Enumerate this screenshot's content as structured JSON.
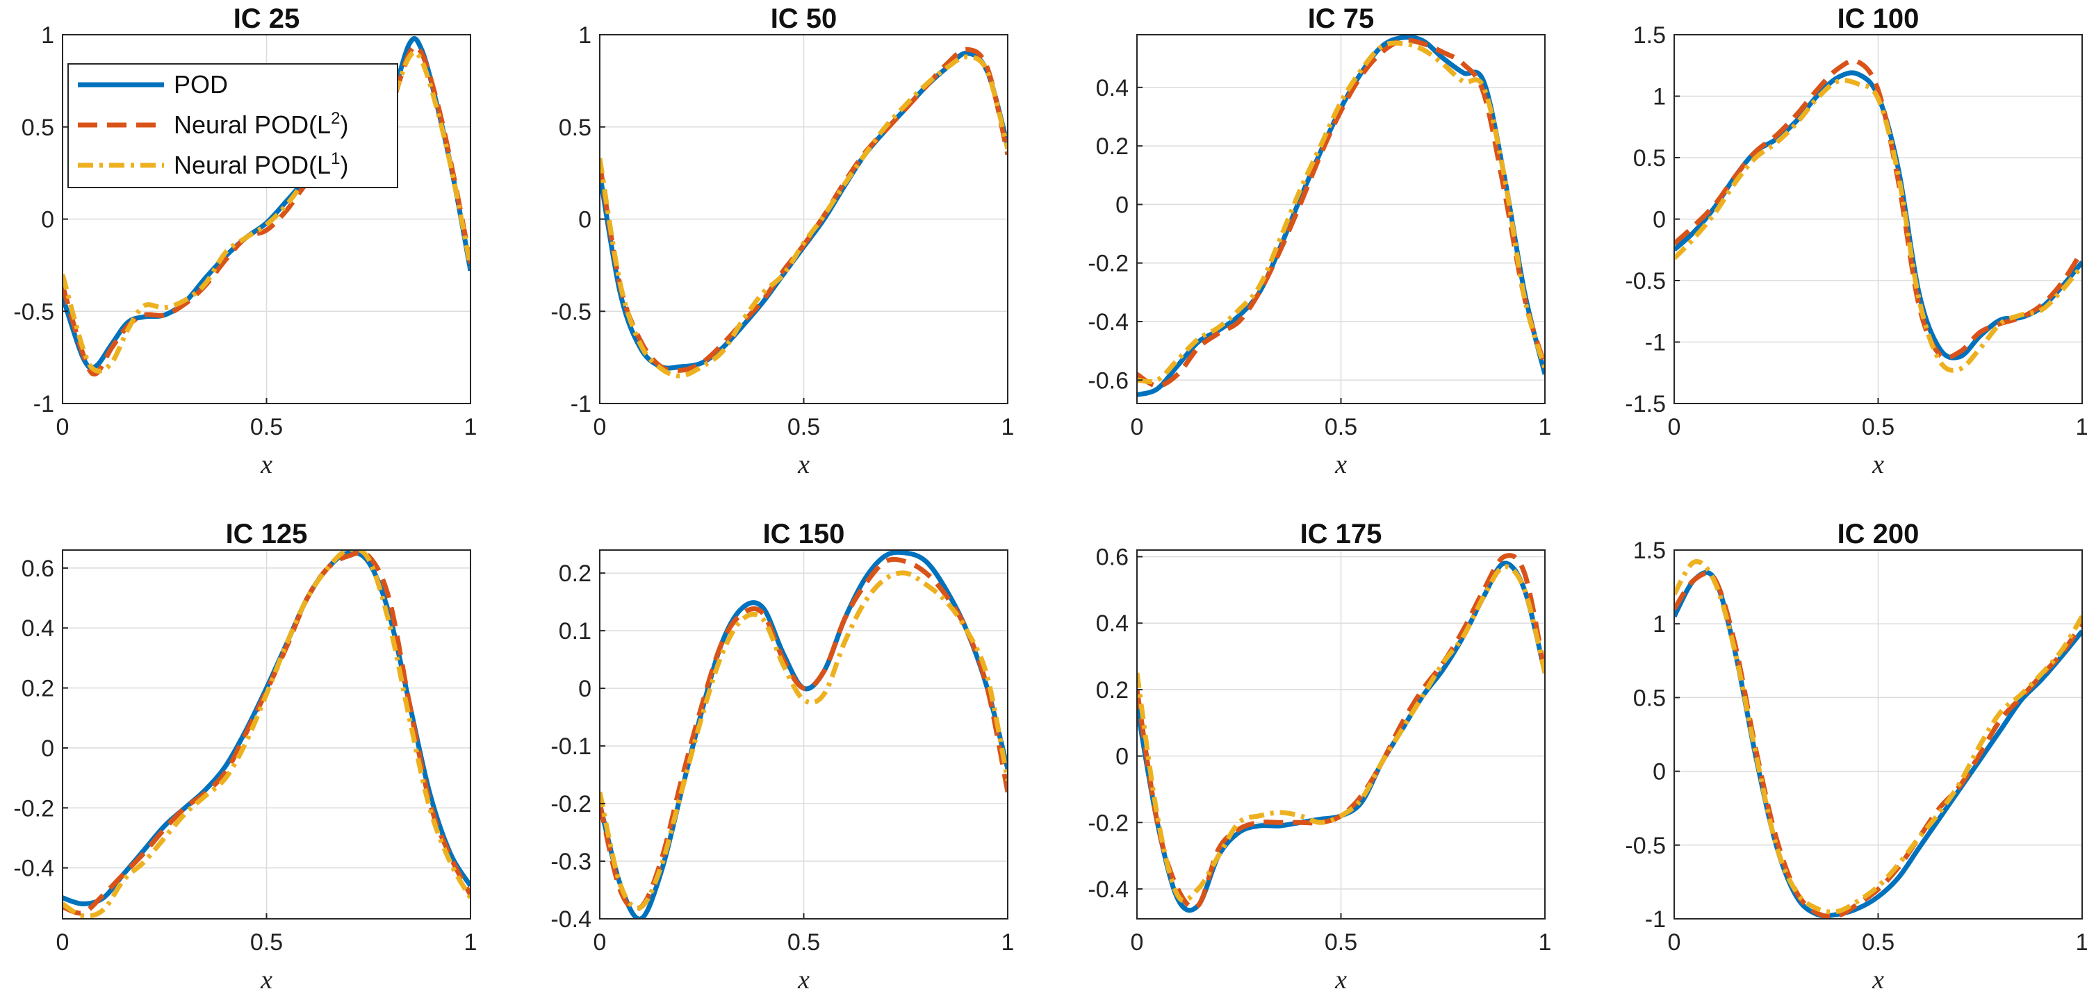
{
  "figure": {
    "legend": {
      "location": "top-left of first panel",
      "entries": [
        {
          "series": "POD",
          "label": "POD",
          "sup": ""
        },
        {
          "series": "L2",
          "label": "Neural  POD(L",
          "sup": "2",
          "close": ")"
        },
        {
          "series": "L1",
          "label": "Neural  POD(L",
          "sup": "1",
          "close": ")"
        }
      ]
    }
  },
  "styles": {
    "POD": {
      "color": "#0072BD",
      "dash": "none"
    },
    "L2": {
      "color": "#D95319",
      "dash": "28,14"
    },
    "L1": {
      "color": "#EDB120",
      "dash": "22,9,5,9"
    }
  },
  "chart_data": [
    {
      "type": "line",
      "title": "IC 25",
      "xlabel": "x",
      "ylabel": "",
      "xlim": [
        0,
        1
      ],
      "ylim": [
        -1,
        1
      ],
      "grid": true,
      "xticks": [
        0,
        0.5,
        1
      ],
      "xticklabels": [
        "0",
        "0.5",
        "1"
      ],
      "yticks": [
        -1,
        -0.5,
        0,
        0.5,
        1
      ],
      "yticklabels": [
        "-1",
        "-0.5",
        "0",
        "0.5",
        "1"
      ],
      "x": [
        0,
        0.05,
        0.08,
        0.12,
        0.16,
        0.2,
        0.25,
        0.3,
        0.35,
        0.4,
        0.45,
        0.5,
        0.55,
        0.6,
        0.65,
        0.7,
        0.75,
        0.8,
        0.85,
        0.88,
        0.92,
        0.96,
        1.0
      ],
      "series": [
        {
          "name": "POD",
          "values": [
            -0.42,
            -0.75,
            -0.8,
            -0.68,
            -0.56,
            -0.53,
            -0.52,
            -0.45,
            -0.32,
            -0.2,
            -0.1,
            -0.02,
            0.1,
            0.22,
            0.3,
            0.33,
            0.4,
            0.6,
            0.95,
            0.92,
            0.6,
            0.2,
            -0.28
          ]
        },
        {
          "name": "Neural POD(L2)",
          "values": [
            -0.36,
            -0.73,
            -0.84,
            -0.7,
            -0.58,
            -0.52,
            -0.52,
            -0.46,
            -0.36,
            -0.22,
            -0.1,
            -0.06,
            0.05,
            0.2,
            0.3,
            0.34,
            0.4,
            0.58,
            0.9,
            0.9,
            0.62,
            0.22,
            -0.24
          ]
        },
        {
          "name": "Neural POD(L1)",
          "values": [
            -0.3,
            -0.7,
            -0.82,
            -0.78,
            -0.6,
            -0.47,
            -0.48,
            -0.44,
            -0.35,
            -0.18,
            -0.1,
            -0.03,
            0.08,
            0.22,
            0.3,
            0.35,
            0.42,
            0.6,
            0.88,
            0.86,
            0.58,
            0.2,
            -0.26
          ]
        }
      ]
    },
    {
      "type": "line",
      "title": "IC 50",
      "xlabel": "x",
      "ylabel": "",
      "xlim": [
        0,
        1
      ],
      "ylim": [
        -1,
        1
      ],
      "grid": true,
      "xticks": [
        0,
        0.5,
        1
      ],
      "xticklabels": [
        "0",
        "0.5",
        "1"
      ],
      "yticks": [
        -1,
        -0.5,
        0,
        0.5,
        1
      ],
      "yticklabels": [
        "-1",
        "-0.5",
        "0",
        "0.5",
        "1"
      ],
      "x": [
        0,
        0.05,
        0.1,
        0.15,
        0.2,
        0.25,
        0.3,
        0.35,
        0.4,
        0.45,
        0.5,
        0.55,
        0.6,
        0.65,
        0.7,
        0.75,
        0.8,
        0.85,
        0.9,
        0.95,
        1.0
      ],
      "series": [
        {
          "name": "POD",
          "values": [
            0.25,
            -0.4,
            -0.7,
            -0.8,
            -0.8,
            -0.78,
            -0.7,
            -0.58,
            -0.45,
            -0.3,
            -0.15,
            0.0,
            0.18,
            0.35,
            0.48,
            0.6,
            0.72,
            0.82,
            0.9,
            0.8,
            0.4
          ]
        },
        {
          "name": "Neural POD(L2)",
          "values": [
            0.3,
            -0.36,
            -0.66,
            -0.8,
            -0.82,
            -0.78,
            -0.68,
            -0.56,
            -0.44,
            -0.28,
            -0.14,
            0.02,
            0.2,
            0.36,
            0.48,
            0.6,
            0.72,
            0.84,
            0.92,
            0.82,
            0.35
          ]
        },
        {
          "name": "Neural POD(L1)",
          "values": [
            0.33,
            -0.35,
            -0.68,
            -0.81,
            -0.85,
            -0.8,
            -0.72,
            -0.55,
            -0.4,
            -0.3,
            -0.13,
            0.02,
            0.19,
            0.35,
            0.5,
            0.62,
            0.73,
            0.82,
            0.88,
            0.8,
            0.38
          ]
        }
      ]
    },
    {
      "type": "line",
      "title": "IC 75",
      "xlabel": "x",
      "ylabel": "",
      "xlim": [
        0,
        1
      ],
      "ylim": [
        -0.68,
        0.58
      ],
      "grid": true,
      "xticks": [
        0,
        0.5,
        1
      ],
      "xticklabels": [
        "0",
        "0.5",
        "1"
      ],
      "yticks": [
        -0.6,
        -0.4,
        -0.2,
        0,
        0.2,
        0.4
      ],
      "yticklabels": [
        "-0.6",
        "-0.4",
        "-0.2",
        "0",
        "0.2",
        "0.4"
      ],
      "x": [
        0,
        0.05,
        0.1,
        0.15,
        0.2,
        0.25,
        0.3,
        0.35,
        0.4,
        0.45,
        0.5,
        0.55,
        0.6,
        0.65,
        0.7,
        0.75,
        0.8,
        0.85,
        0.9,
        0.95,
        1.0
      ],
      "series": [
        {
          "name": "POD",
          "values": [
            -0.65,
            -0.63,
            -0.55,
            -0.47,
            -0.43,
            -0.38,
            -0.3,
            -0.15,
            0.02,
            0.18,
            0.33,
            0.45,
            0.54,
            0.57,
            0.56,
            0.5,
            0.45,
            0.42,
            0.1,
            -0.3,
            -0.58
          ]
        },
        {
          "name": "Neural POD(L2)",
          "values": [
            -0.58,
            -0.62,
            -0.58,
            -0.49,
            -0.44,
            -0.4,
            -0.3,
            -0.16,
            0.0,
            0.17,
            0.32,
            0.44,
            0.52,
            0.56,
            0.55,
            0.52,
            0.48,
            0.38,
            0.05,
            -0.32,
            -0.55
          ]
        },
        {
          "name": "Neural POD(L1)",
          "values": [
            -0.6,
            -0.6,
            -0.53,
            -0.46,
            -0.42,
            -0.36,
            -0.28,
            -0.12,
            0.05,
            0.2,
            0.35,
            0.46,
            0.54,
            0.55,
            0.53,
            0.48,
            0.42,
            0.4,
            0.1,
            -0.32,
            -0.56
          ]
        }
      ]
    },
    {
      "type": "line",
      "title": "IC 100",
      "xlabel": "x",
      "ylabel": "",
      "xlim": [
        0,
        1
      ],
      "ylim": [
        -1.5,
        1.5
      ],
      "grid": true,
      "xticks": [
        0,
        0.5,
        1
      ],
      "xticklabels": [
        "0",
        "0.5",
        "1"
      ],
      "yticks": [
        -1.5,
        -1,
        -0.5,
        0,
        0.5,
        1,
        1.5
      ],
      "yticklabels": [
        "-1.5",
        "-1",
        "-0.5",
        "0",
        "0.5",
        "1",
        "1.5"
      ],
      "x": [
        0,
        0.05,
        0.1,
        0.15,
        0.2,
        0.25,
        0.3,
        0.35,
        0.4,
        0.45,
        0.5,
        0.55,
        0.6,
        0.65,
        0.7,
        0.75,
        0.8,
        0.85,
        0.9,
        0.95,
        1.0
      ],
      "series": [
        {
          "name": "POD",
          "values": [
            -0.25,
            -0.1,
            0.1,
            0.35,
            0.55,
            0.65,
            0.8,
            1.0,
            1.15,
            1.18,
            1.0,
            0.4,
            -0.6,
            -1.05,
            -1.12,
            -0.95,
            -0.82,
            -0.8,
            -0.72,
            -0.55,
            -0.35
          ]
        },
        {
          "name": "Neural POD(L2)",
          "values": [
            -0.2,
            -0.05,
            0.12,
            0.35,
            0.55,
            0.68,
            0.85,
            1.05,
            1.22,
            1.28,
            1.05,
            0.3,
            -0.7,
            -1.1,
            -1.08,
            -0.92,
            -0.85,
            -0.8,
            -0.7,
            -0.52,
            -0.26
          ]
        },
        {
          "name": "Neural POD(L1)",
          "values": [
            -0.32,
            -0.15,
            0.05,
            0.3,
            0.5,
            0.62,
            0.78,
            0.98,
            1.12,
            1.1,
            0.98,
            0.35,
            -0.65,
            -1.15,
            -1.22,
            -1.05,
            -0.85,
            -0.78,
            -0.74,
            -0.58,
            -0.38
          ]
        }
      ]
    },
    {
      "type": "line",
      "title": "IC 125",
      "xlabel": "x",
      "ylabel": "",
      "xlim": [
        0,
        1
      ],
      "ylim": [
        -0.57,
        0.66
      ],
      "grid": true,
      "xticks": [
        0,
        0.5,
        1
      ],
      "xticklabels": [
        "0",
        "0.5",
        "1"
      ],
      "yticks": [
        -0.4,
        -0.2,
        0,
        0.2,
        0.4,
        0.6
      ],
      "yticklabels": [
        "-0.4",
        "-0.2",
        "0",
        "0.2",
        "0.4",
        "0.6"
      ],
      "x": [
        0,
        0.05,
        0.1,
        0.15,
        0.2,
        0.25,
        0.3,
        0.35,
        0.4,
        0.45,
        0.5,
        0.55,
        0.6,
        0.65,
        0.7,
        0.75,
        0.8,
        0.85,
        0.9,
        0.95,
        1.0
      ],
      "series": [
        {
          "name": "POD",
          "values": [
            -0.5,
            -0.52,
            -0.5,
            -0.42,
            -0.34,
            -0.26,
            -0.2,
            -0.14,
            -0.06,
            0.06,
            0.2,
            0.35,
            0.5,
            0.6,
            0.65,
            0.62,
            0.45,
            0.15,
            -0.15,
            -0.35,
            -0.46
          ]
        },
        {
          "name": "Neural POD(L2)",
          "values": [
            -0.53,
            -0.55,
            -0.49,
            -0.42,
            -0.35,
            -0.27,
            -0.2,
            -0.15,
            -0.08,
            0.05,
            0.19,
            0.34,
            0.5,
            0.6,
            0.64,
            0.64,
            0.5,
            0.15,
            -0.18,
            -0.36,
            -0.49
          ]
        },
        {
          "name": "Neural POD(L1)",
          "values": [
            -0.52,
            -0.56,
            -0.54,
            -0.44,
            -0.38,
            -0.3,
            -0.22,
            -0.16,
            -0.1,
            0.02,
            0.18,
            0.35,
            0.5,
            0.6,
            0.66,
            0.63,
            0.42,
            0.1,
            -0.2,
            -0.38,
            -0.5
          ]
        }
      ]
    },
    {
      "type": "line",
      "title": "IC 150",
      "xlabel": "x",
      "ylabel": "",
      "xlim": [
        0,
        1
      ],
      "ylim": [
        -0.4,
        0.24
      ],
      "grid": true,
      "xticks": [
        0,
        0.5,
        1
      ],
      "xticklabels": [
        "0",
        "0.5",
        "1"
      ],
      "yticks": [
        -0.4,
        -0.3,
        -0.2,
        -0.1,
        0,
        0.1,
        0.2
      ],
      "yticklabels": [
        "-0.4",
        "-0.3",
        "-0.2",
        "-0.1",
        "0",
        "0.1",
        "0.2"
      ],
      "x": [
        0,
        0.05,
        0.1,
        0.15,
        0.2,
        0.25,
        0.3,
        0.35,
        0.4,
        0.45,
        0.5,
        0.55,
        0.6,
        0.65,
        0.7,
        0.75,
        0.8,
        0.85,
        0.9,
        0.95,
        1.0
      ],
      "series": [
        {
          "name": "POD",
          "values": [
            -0.2,
            -0.34,
            -0.4,
            -0.32,
            -0.18,
            -0.04,
            0.08,
            0.14,
            0.14,
            0.06,
            0.0,
            0.03,
            0.12,
            0.19,
            0.23,
            0.235,
            0.22,
            0.17,
            0.1,
            0.0,
            -0.14
          ]
        },
        {
          "name": "Neural POD(L2)",
          "values": [
            -0.2,
            -0.35,
            -0.38,
            -0.3,
            -0.16,
            -0.03,
            0.08,
            0.13,
            0.13,
            0.05,
            0.0,
            0.03,
            0.12,
            0.18,
            0.22,
            0.22,
            0.2,
            0.16,
            0.1,
            0.0,
            -0.18
          ]
        },
        {
          "name": "Neural POD(L1)",
          "values": [
            -0.18,
            -0.34,
            -0.38,
            -0.31,
            -0.18,
            -0.05,
            0.06,
            0.12,
            0.12,
            0.04,
            -0.02,
            -0.01,
            0.08,
            0.15,
            0.19,
            0.2,
            0.18,
            0.15,
            0.1,
            0.02,
            -0.16
          ]
        }
      ]
    },
    {
      "type": "line",
      "title": "IC 175",
      "xlabel": "x",
      "ylabel": "",
      "xlim": [
        0,
        1
      ],
      "ylim": [
        -0.49,
        0.62
      ],
      "grid": true,
      "xticks": [
        0,
        0.5,
        1
      ],
      "xticklabels": [
        "0",
        "0.5",
        "1"
      ],
      "yticks": [
        -0.4,
        -0.2,
        0,
        0.2,
        0.4,
        0.6
      ],
      "yticklabels": [
        "-0.4",
        "-0.2",
        "0",
        "0.2",
        "0.4",
        "0.6"
      ],
      "x": [
        0,
        0.05,
        0.1,
        0.15,
        0.2,
        0.25,
        0.3,
        0.35,
        0.4,
        0.45,
        0.5,
        0.55,
        0.6,
        0.65,
        0.7,
        0.75,
        0.8,
        0.85,
        0.9,
        0.95,
        1.0
      ],
      "series": [
        {
          "name": "POD",
          "values": [
            0.15,
            -0.2,
            -0.43,
            -0.45,
            -0.3,
            -0.23,
            -0.21,
            -0.21,
            -0.2,
            -0.19,
            -0.18,
            -0.14,
            -0.02,
            0.08,
            0.18,
            0.26,
            0.36,
            0.48,
            0.58,
            0.5,
            0.25
          ]
        },
        {
          "name": "Neural POD(L2)",
          "values": [
            0.2,
            -0.2,
            -0.4,
            -0.45,
            -0.28,
            -0.22,
            -0.2,
            -0.2,
            -0.2,
            -0.2,
            -0.18,
            -0.12,
            -0.02,
            0.1,
            0.2,
            0.28,
            0.38,
            0.5,
            0.6,
            0.55,
            0.25
          ]
        },
        {
          "name": "Neural POD(L1)",
          "values": [
            0.25,
            -0.18,
            -0.42,
            -0.4,
            -0.3,
            -0.2,
            -0.18,
            -0.17,
            -0.18,
            -0.2,
            -0.18,
            -0.13,
            -0.02,
            0.08,
            0.18,
            0.28,
            0.36,
            0.48,
            0.57,
            0.5,
            0.25
          ]
        }
      ]
    },
    {
      "type": "line",
      "title": "IC 200",
      "xlabel": "x",
      "ylabel": "",
      "xlim": [
        0,
        1
      ],
      "ylim": [
        -1,
        1.5
      ],
      "grid": true,
      "xticks": [
        0,
        0.5,
        1
      ],
      "xticklabels": [
        "0",
        "0.5",
        "1"
      ],
      "yticks": [
        -1,
        -0.5,
        0,
        0.5,
        1,
        1.5
      ],
      "yticklabels": [
        "-1",
        "-0.5",
        "0",
        "0.5",
        "1",
        "1.5"
      ],
      "x": [
        0,
        0.05,
        0.1,
        0.15,
        0.2,
        0.25,
        0.3,
        0.35,
        0.4,
        0.45,
        0.5,
        0.55,
        0.6,
        0.65,
        0.7,
        0.75,
        0.8,
        0.85,
        0.9,
        0.95,
        1.0
      ],
      "series": [
        {
          "name": "POD",
          "values": [
            1.05,
            1.3,
            1.3,
            0.8,
            0.1,
            -0.5,
            -0.85,
            -0.97,
            -0.97,
            -0.93,
            -0.85,
            -0.72,
            -0.52,
            -0.32,
            -0.12,
            0.08,
            0.28,
            0.48,
            0.62,
            0.78,
            0.95
          ]
        },
        {
          "name": "Neural POD(L2)",
          "values": [
            1.1,
            1.3,
            1.3,
            0.85,
            0.15,
            -0.45,
            -0.82,
            -0.96,
            -0.98,
            -0.9,
            -0.8,
            -0.65,
            -0.45,
            -0.25,
            -0.1,
            0.12,
            0.35,
            0.5,
            0.65,
            0.8,
            1.0
          ]
        },
        {
          "name": "Neural POD(L1)",
          "values": [
            1.2,
            1.42,
            1.28,
            0.8,
            0.12,
            -0.5,
            -0.82,
            -0.93,
            -0.95,
            -0.88,
            -0.78,
            -0.63,
            -0.45,
            -0.28,
            -0.08,
            0.18,
            0.4,
            0.52,
            0.66,
            0.82,
            1.05
          ]
        }
      ]
    }
  ]
}
